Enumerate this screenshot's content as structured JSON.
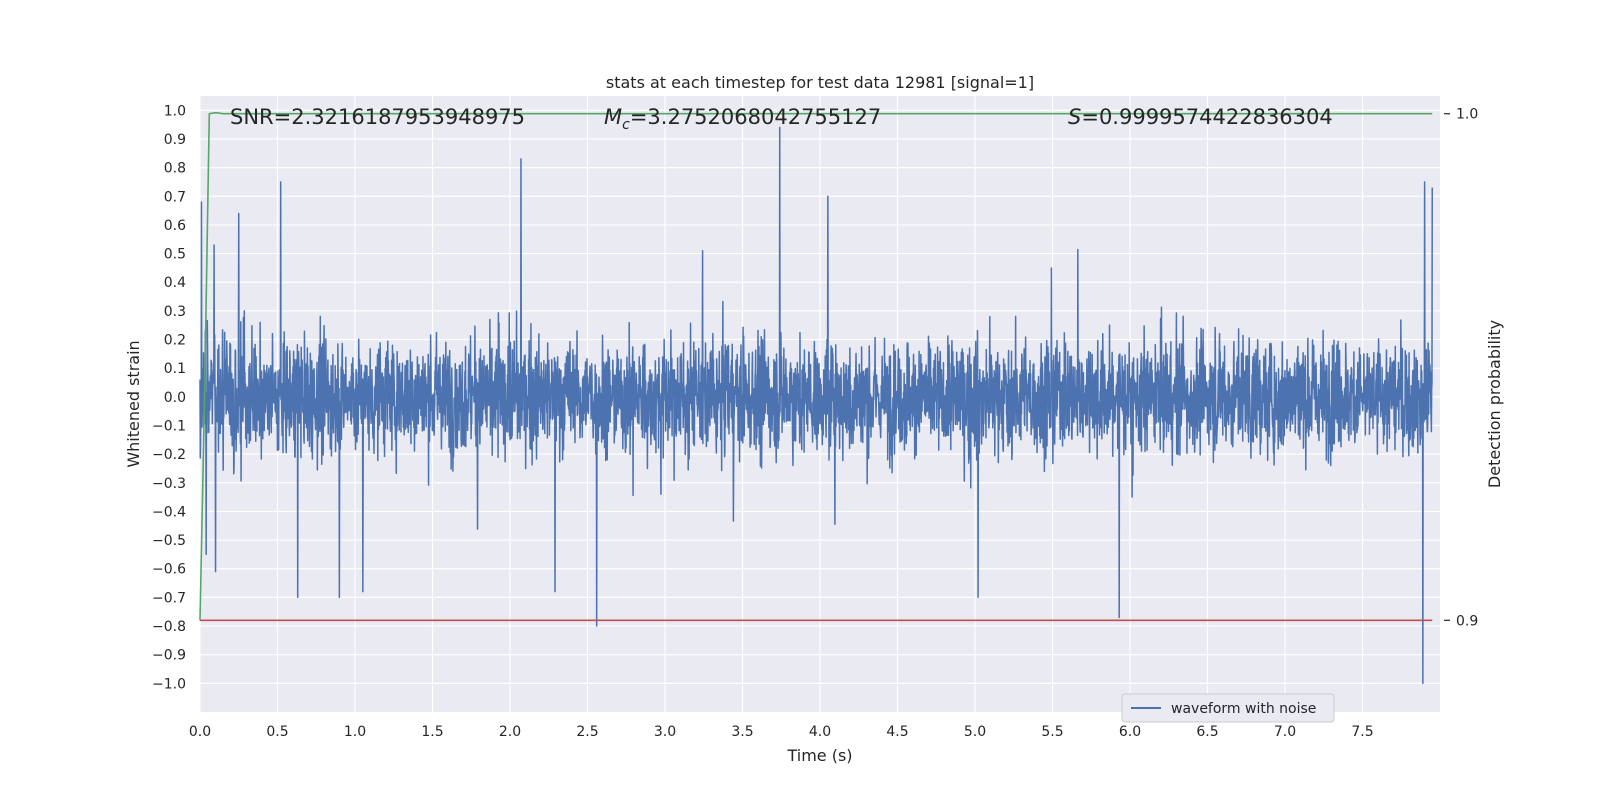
{
  "chart_data": {
    "type": "line",
    "title": "stats at each timestep for test data 12981 [signal=1]",
    "xlabel": "Time (s)",
    "ylabel": "Whitened strain",
    "y2label": "Detection probability",
    "xlim": [
      0.0,
      8.0
    ],
    "ylim": [
      -1.1,
      1.05
    ],
    "y2lim": [
      0.8819,
      1.0035
    ],
    "x_ticks": [
      "0.0",
      "0.5",
      "1.0",
      "1.5",
      "2.0",
      "2.5",
      "3.0",
      "3.5",
      "4.0",
      "4.5",
      "5.0",
      "5.5",
      "6.0",
      "6.5",
      "7.0",
      "7.5"
    ],
    "y_ticks": [
      "1.0",
      "0.9",
      "0.8",
      "0.7",
      "0.6",
      "0.5",
      "0.4",
      "0.3",
      "0.2",
      "0.1",
      "0.0",
      "-0.1",
      "-0.2",
      "-0.3",
      "-0.4",
      "-0.5",
      "-0.6",
      "-0.7",
      "-0.8",
      "-0.9",
      "-1.0"
    ],
    "y2_ticks": [
      "1.0",
      "0.9"
    ],
    "grid": true,
    "legend_position": "lower-right",
    "annotations": {
      "snr": "SNR=2.3216187953948975",
      "mc_symbol": "M",
      "mc_sub": "c",
      "mc_value": "=3.2752068042755127",
      "s_symbol": "S",
      "s_value": "=0.9999574422836304"
    },
    "series": [
      {
        "name": "waveform with noise",
        "color": "#4c72b0",
        "axis": "left",
        "x_range": [
          0.0,
          7.95
        ],
        "noise_amplitude": 0.25,
        "peaks": [
          {
            "x": 0.01,
            "y": 0.68
          },
          {
            "x": 0.04,
            "y": -0.55
          },
          {
            "x": 0.09,
            "y": 0.53
          },
          {
            "x": 0.1,
            "y": -0.61
          },
          {
            "x": 0.25,
            "y": 0.64
          },
          {
            "x": 0.52,
            "y": 0.75
          },
          {
            "x": 0.63,
            "y": -0.7
          },
          {
            "x": 0.9,
            "y": -0.7
          },
          {
            "x": 1.05,
            "y": -0.68
          },
          {
            "x": 2.07,
            "y": 0.83
          },
          {
            "x": 2.29,
            "y": -0.68
          },
          {
            "x": 2.56,
            "y": -0.8
          },
          {
            "x": 3.74,
            "y": 0.94
          },
          {
            "x": 4.05,
            "y": 0.7
          },
          {
            "x": 5.02,
            "y": -0.7
          },
          {
            "x": 5.93,
            "y": -0.77
          },
          {
            "x": 7.89,
            "y": -1.0
          },
          {
            "x": 7.9,
            "y": 0.75
          },
          {
            "x": 7.95,
            "y": 0.73
          }
        ]
      },
      {
        "name": "",
        "color": "#55a868",
        "axis": "right",
        "x": [
          0.0,
          0.03,
          0.06,
          0.1,
          0.15,
          7.95
        ],
        "y": [
          0.9,
          0.945,
          1.0,
          1.0002,
          1.0,
          1.0
        ]
      },
      {
        "name": "",
        "color": "#c44e52",
        "axis": "right",
        "x": [
          0.0,
          7.95
        ],
        "y": [
          0.9,
          0.9
        ]
      }
    ]
  }
}
